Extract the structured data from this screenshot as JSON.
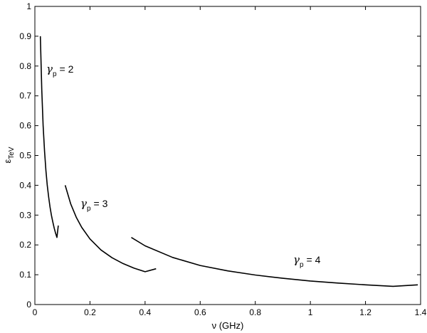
{
  "chart_data": {
    "type": "line",
    "title": "",
    "xlabel": "ν (GHz)",
    "ylabel": {
      "main": "ε",
      "sub": "TeV"
    },
    "xlim": [
      0,
      1.4
    ],
    "ylim": [
      0,
      1
    ],
    "grid": false,
    "x_ticks": [
      "0",
      "0.2",
      "0.4",
      "0.6",
      "0.8",
      "1",
      "1.2",
      "1.4"
    ],
    "y_ticks": [
      "0",
      "0.1",
      "0.2",
      "0.3",
      "0.4",
      "0.5",
      "0.6",
      "0.7",
      "0.8",
      "0.9",
      "1"
    ],
    "series": [
      {
        "x": [
          0.02,
          0.025,
          0.03,
          0.035,
          0.04,
          0.045,
          0.05,
          0.055,
          0.06,
          0.065,
          0.07,
          0.075,
          0.08,
          0.085
        ],
        "y": [
          0.9,
          0.72,
          0.6,
          0.514,
          0.45,
          0.4,
          0.36,
          0.327,
          0.3,
          0.277,
          0.257,
          0.24,
          0.225,
          0.265
        ]
      },
      {
        "x": [
          0.11,
          0.13,
          0.15,
          0.17,
          0.2,
          0.24,
          0.28,
          0.32,
          0.36,
          0.4,
          0.44
        ],
        "y": [
          0.4,
          0.338,
          0.293,
          0.259,
          0.22,
          0.183,
          0.157,
          0.1375,
          0.122,
          0.11,
          0.12
        ]
      },
      {
        "x": [
          0.35,
          0.4,
          0.5,
          0.6,
          0.7,
          0.8,
          0.9,
          1.0,
          1.1,
          1.2,
          1.3,
          1.39
        ],
        "y": [
          0.225,
          0.197,
          0.158,
          0.131,
          0.113,
          0.099,
          0.088,
          0.079,
          0.072,
          0.066,
          0.061,
          0.066
        ]
      }
    ],
    "annotations": [
      {
        "symbol": "γ",
        "sub": "p",
        "text": "= 2"
      },
      {
        "symbol": "γ",
        "sub": "p",
        "text": "= 3"
      },
      {
        "symbol": "γ",
        "sub": "p",
        "text": "= 4"
      }
    ]
  }
}
